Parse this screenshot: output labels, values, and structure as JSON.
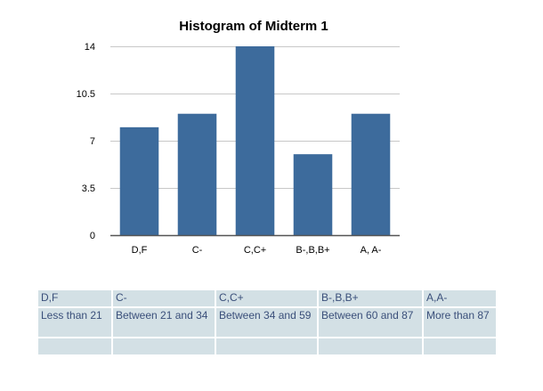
{
  "chart_data": {
    "type": "bar",
    "title": "Histogram of Midterm 1",
    "categories": [
      "D,F",
      "C-",
      "C,C+",
      "B-,B,B+",
      "A, A-"
    ],
    "values": [
      8,
      9,
      14,
      6,
      9
    ],
    "yticks": [
      "0",
      "3.5",
      "7",
      "10.5",
      "14"
    ],
    "ylim": [
      0,
      14
    ],
    "grid": true,
    "bar_color": "#3d6b9c",
    "xlabel": "",
    "ylabel": ""
  },
  "table": {
    "headers": [
      "D,F",
      "C-",
      "C,C+",
      "B-,B,B+",
      "A,A-"
    ],
    "ranges": [
      "Less than 21",
      "Between 21 and 34",
      "Between 34 and 59",
      "Between 60 and 87",
      "More than 87"
    ]
  },
  "colors": {
    "table_bg": "#d3e0e5",
    "table_text": "#3a4f7a",
    "grid": "#c8c8c8"
  }
}
